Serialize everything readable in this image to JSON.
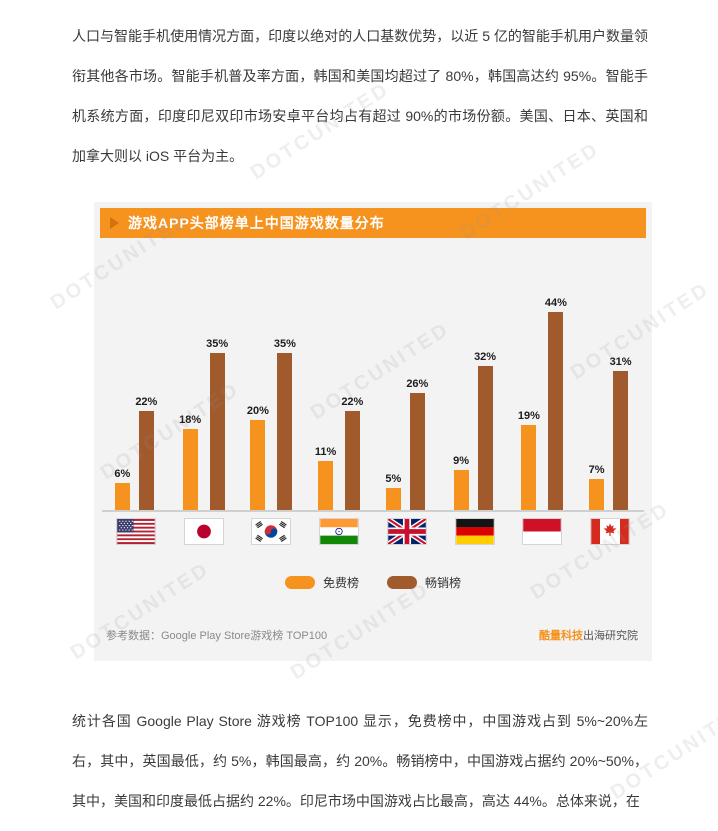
{
  "page": {
    "top_paragraph": "人口与智能手机使用情况方面，印度以绝对的人口基数优势，以近 5 亿的智能手机用户数量领衔其他各市场。智能手机普及率方面，韩国和美国均超过了 80%，韩国高达约 95%。智能手机系统方面，印度印尼双印市场安卓平台均占有超过 90%的市场份额。美国、日本、英国和加拿大则以 iOS 平台为主。",
    "bottom_paragraph": "统计各国 Google Play Store 游戏榜 TOP100 显示，免费榜中，中国游戏占到 5%~20%左右，其中，英国最低，约 5%，韩国最高，约 20%。畅销榜中，中国游戏占据约 20%~50%，其中，美国和印度最低占据约 22%。印尼市场中国游戏占比最高，高达 44%。总体来说，在"
  },
  "chart": {
    "title": "游戏APP头部榜单上中国游戏数量分布",
    "source": "参考数据：Google Play Store游戏榜 TOP100",
    "credit_brand": "酷量科技",
    "credit_rest": "出海研究院",
    "banner_color": "#F6921E"
  },
  "chart_data": {
    "type": "bar",
    "title": "游戏APP头部榜单上中国游戏数量分布",
    "categories": [
      "美国",
      "日本",
      "韩国",
      "印度",
      "英国",
      "德国",
      "印尼",
      "加拿大"
    ],
    "category_flags": [
      "us",
      "jp",
      "kr",
      "in",
      "gb",
      "de",
      "id",
      "ca"
    ],
    "series": [
      {
        "name": "免费榜",
        "color": "#F6921E",
        "values": [
          6,
          18,
          20,
          11,
          5,
          9,
          19,
          7
        ]
      },
      {
        "name": "畅销榜",
        "color": "#A05A2B",
        "values": [
          22,
          35,
          35,
          22,
          26,
          32,
          44,
          31
        ]
      }
    ],
    "value_suffix": "%",
    "ylim": [
      0,
      50
    ],
    "grid": false,
    "legend_position": "bottom",
    "source_note": "参考数据：Google Play Store游戏榜 TOP100"
  },
  "watermark": {
    "text": "DOTCUNITED"
  }
}
